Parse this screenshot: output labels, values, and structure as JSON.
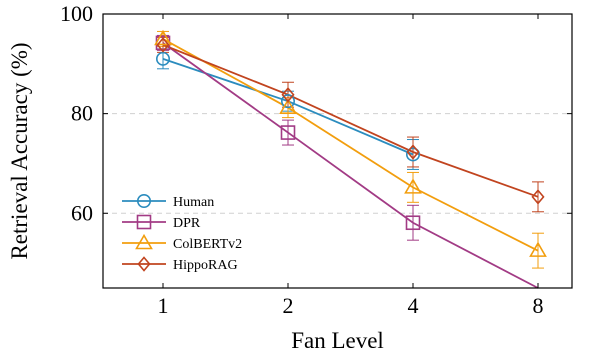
{
  "chart_data": {
    "type": "line",
    "xlabel": "Fan Level",
    "ylabel": "Retrieval Accuracy (%)",
    "categories": [
      "1",
      "2",
      "4",
      "8"
    ],
    "ylim": [
      45,
      100
    ],
    "yticks": [
      60,
      80,
      100
    ],
    "grid": "horizontal dashed",
    "legend_position": "bottom-left",
    "series": [
      {
        "name": "Human",
        "marker": "circle",
        "color": "#2b8cbe",
        "values": [
          91,
          82.5,
          71.8,
          null
        ],
        "err": [
          2,
          2,
          3,
          null
        ]
      },
      {
        "name": "DPR",
        "marker": "square",
        "color": "#a23b85",
        "values": [
          94.2,
          76.2,
          58.1,
          45
        ],
        "err": [
          1.5,
          2.5,
          3.5,
          0
        ]
      },
      {
        "name": "ColBERTv2",
        "marker": "triangle",
        "color": "#f29e0e",
        "values": [
          95,
          81.2,
          65.2,
          52.5
        ],
        "err": [
          1.5,
          2,
          3,
          3.5
        ]
      },
      {
        "name": "HippoRAG",
        "marker": "diamond",
        "color": "#c1441f",
        "values": [
          93.8,
          83.8,
          72.3,
          63.3
        ],
        "err": [
          1.5,
          2.5,
          3,
          3
        ]
      }
    ]
  }
}
